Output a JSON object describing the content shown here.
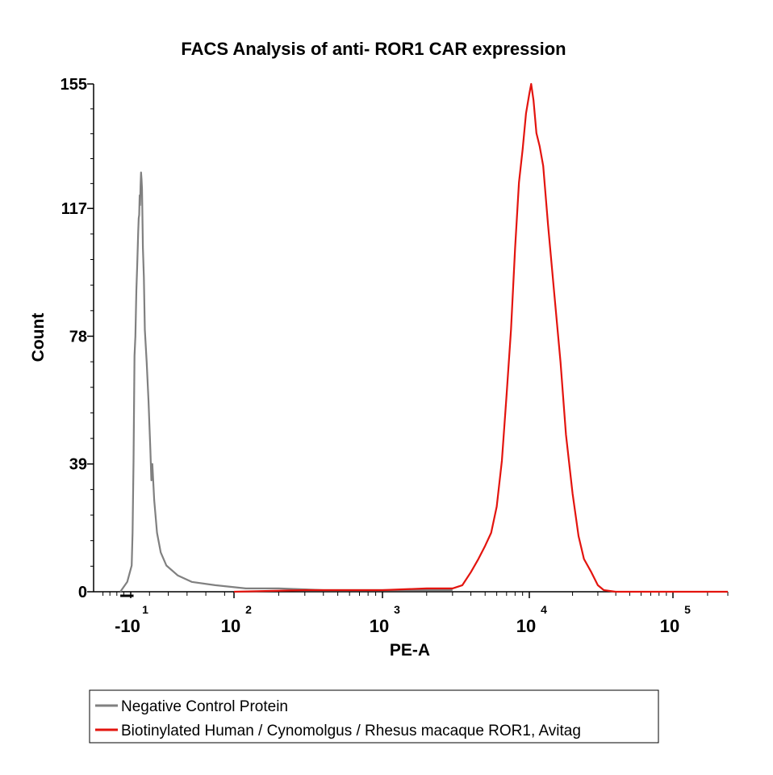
{
  "chart_data": {
    "type": "line",
    "title": "FACS Analysis of anti- ROR1 CAR expression",
    "xlabel": "PE-A",
    "ylabel": "Count",
    "x_scale": "biexponential",
    "xlim": [
      -20,
      300000
    ],
    "ylim": [
      0,
      155
    ],
    "yticks": [
      0,
      39,
      78,
      117,
      155
    ],
    "xticks": [
      {
        "value": -10,
        "base": "-10",
        "exp": "1"
      },
      {
        "value": 100,
        "base": "10",
        "exp": "2"
      },
      {
        "value": 1000,
        "base": "10",
        "exp": "3"
      },
      {
        "value": 10000,
        "base": "10",
        "exp": "4"
      },
      {
        "value": 100000,
        "base": "10",
        "exp": "5"
      }
    ],
    "grid": false,
    "legend_position": "bottom-left",
    "series": [
      {
        "name": "Negative Control Protein",
        "color": "#808080",
        "points": [
          [
            -13,
            0
          ],
          [
            -11,
            3
          ],
          [
            -9,
            8
          ],
          [
            -8,
            18
          ],
          [
            -7,
            40
          ],
          [
            -6,
            72
          ],
          [
            -5,
            78
          ],
          [
            -4,
            92
          ],
          [
            -3,
            100
          ],
          [
            -2,
            110
          ],
          [
            -1.5,
            114
          ],
          [
            -1,
            115
          ],
          [
            -0.5,
            121
          ],
          [
            0,
            118
          ],
          [
            0.5,
            124
          ],
          [
            1,
            128
          ],
          [
            1.5,
            126
          ],
          [
            2,
            123
          ],
          [
            3,
            105
          ],
          [
            4,
            96
          ],
          [
            5,
            80
          ],
          [
            7,
            70
          ],
          [
            9,
            58
          ],
          [
            11,
            43
          ],
          [
            12,
            34
          ],
          [
            13,
            39
          ],
          [
            15,
            28
          ],
          [
            18,
            18
          ],
          [
            22,
            12
          ],
          [
            28,
            8
          ],
          [
            40,
            5
          ],
          [
            55,
            3
          ],
          [
            80,
            2
          ],
          [
            120,
            1
          ],
          [
            200,
            1
          ],
          [
            400,
            0.5
          ],
          [
            1000,
            0.5
          ],
          [
            3000,
            0.5
          ]
        ]
      },
      {
        "name": "Biotinylated Human / Cynomolgus / Rhesus macaque ROR1, Avitag",
        "color": "#e3140e",
        "points": [
          [
            100,
            0
          ],
          [
            300,
            0.5
          ],
          [
            1000,
            0.5
          ],
          [
            2000,
            1
          ],
          [
            3000,
            1
          ],
          [
            3500,
            2
          ],
          [
            4000,
            6
          ],
          [
            4500,
            10
          ],
          [
            5000,
            14
          ],
          [
            5500,
            18
          ],
          [
            6000,
            26
          ],
          [
            6500,
            40
          ],
          [
            7000,
            60
          ],
          [
            7500,
            80
          ],
          [
            8000,
            105
          ],
          [
            8500,
            125
          ],
          [
            9000,
            135
          ],
          [
            9500,
            146
          ],
          [
            10000,
            152
          ],
          [
            10300,
            155
          ],
          [
            10700,
            150
          ],
          [
            11200,
            140
          ],
          [
            11800,
            136
          ],
          [
            12500,
            130
          ],
          [
            13500,
            112
          ],
          [
            15000,
            90
          ],
          [
            16500,
            70
          ],
          [
            18000,
            48
          ],
          [
            20000,
            30
          ],
          [
            22000,
            17
          ],
          [
            24000,
            10
          ],
          [
            27000,
            6
          ],
          [
            30000,
            2
          ],
          [
            33000,
            0.5
          ],
          [
            40000,
            0
          ],
          [
            100000,
            0
          ],
          [
            300000,
            0
          ]
        ]
      }
    ]
  }
}
